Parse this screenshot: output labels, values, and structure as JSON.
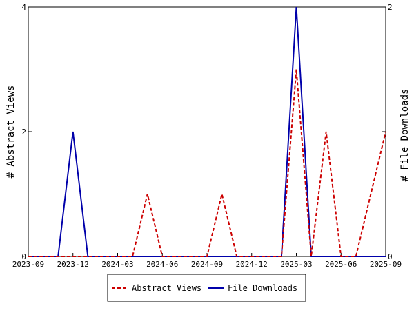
{
  "chart_data": {
    "type": "line",
    "title": "",
    "x_tick_labels": [
      "2023-09",
      "2023-12",
      "2024-03",
      "2024-06",
      "2024-09",
      "2024-12",
      "2025-03",
      "2025-06",
      "2025-09"
    ],
    "x_months": [
      "2023-09",
      "2023-10",
      "2023-11",
      "2023-12",
      "2024-01",
      "2024-02",
      "2024-03",
      "2024-04",
      "2024-05",
      "2024-06",
      "2024-07",
      "2024-08",
      "2024-09",
      "2024-10",
      "2024-11",
      "2024-12",
      "2025-01",
      "2025-02",
      "2025-03",
      "2025-04",
      "2025-05",
      "2025-06",
      "2025-07",
      "2025-08",
      "2025-09"
    ],
    "y_left_label": "# Abstract Views",
    "y_right_label": "# File Downloads",
    "y_left_ticks": [
      "0",
      "2",
      "4"
    ],
    "y_right_ticks": [
      "0",
      "1",
      "2"
    ],
    "ylim_left": [
      0,
      4
    ],
    "ylim_right": [
      0,
      2
    ],
    "series": [
      {
        "name": "Abstract Views",
        "axis": "left",
        "color": "#cc0000",
        "style": "dashed",
        "values": [
          0,
          0,
          0,
          0,
          0,
          0,
          0,
          0,
          1,
          0,
          0,
          0,
          0,
          1,
          0,
          0,
          0,
          0,
          3,
          0,
          2,
          0,
          0,
          1,
          2
        ]
      },
      {
        "name": "File Downloads",
        "axis": "right",
        "color": "#0000aa",
        "style": "solid",
        "values": [
          0,
          0,
          0,
          1,
          0,
          0,
          0,
          0,
          0,
          0,
          0,
          0,
          0,
          0,
          0,
          0,
          0,
          0,
          2,
          0,
          0,
          0,
          0,
          0,
          0
        ]
      }
    ],
    "legend": {
      "placement": "bottom-center"
    },
    "grid": false
  }
}
